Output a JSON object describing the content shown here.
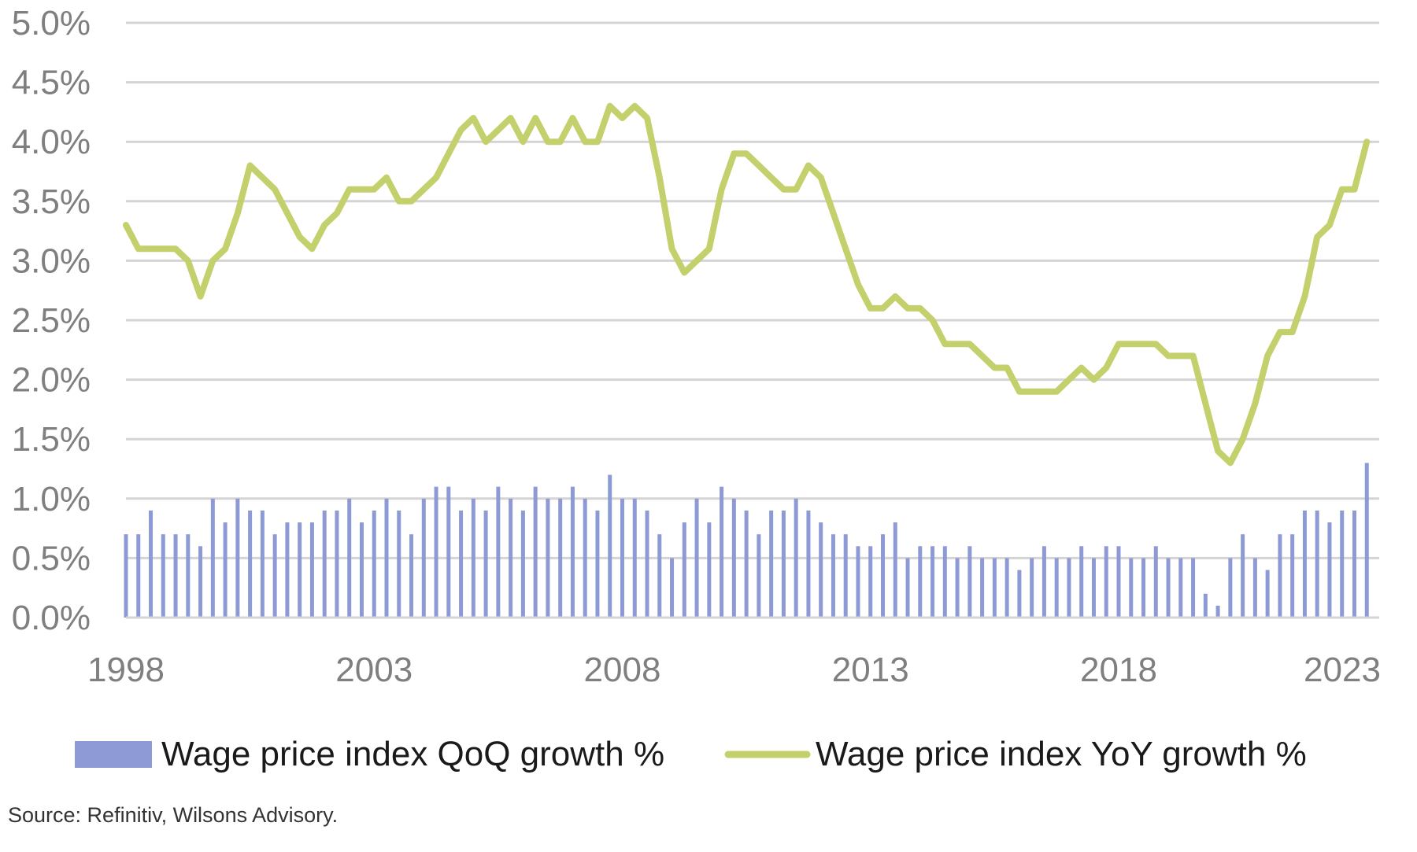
{
  "chart_data": {
    "type": "bar",
    "x_tick_labels": [
      "1998",
      "2003",
      "2008",
      "2013",
      "2018",
      "2023"
    ],
    "y_tick_labels": [
      "0.0%",
      "0.5%",
      "1.0%",
      "1.5%",
      "2.0%",
      "2.5%",
      "3.0%",
      "3.5%",
      "4.0%",
      "4.5%",
      "5.0%"
    ],
    "ylim": [
      0,
      5
    ],
    "xlim": [
      1998.0,
      2023.25
    ],
    "grid": true,
    "legend_position": "bottom",
    "series": [
      {
        "name": "Wage price index QoQ growth %",
        "type": "bar",
        "color": "#8d9ad6",
        "x_start": 1998.0,
        "x_step": 0.25,
        "values": [
          0.7,
          0.7,
          0.9,
          0.7,
          0.7,
          0.7,
          0.6,
          1.0,
          0.8,
          1.0,
          0.9,
          0.9,
          0.7,
          0.8,
          0.8,
          0.8,
          0.9,
          0.9,
          1.0,
          0.8,
          0.9,
          1.0,
          0.9,
          0.7,
          1.0,
          1.1,
          1.1,
          0.9,
          1.0,
          0.9,
          1.1,
          1.0,
          0.9,
          1.1,
          1.0,
          1.0,
          1.1,
          1.0,
          0.9,
          1.2,
          1.0,
          1.0,
          0.9,
          0.7,
          0.5,
          0.8,
          1.0,
          0.8,
          1.1,
          1.0,
          0.9,
          0.7,
          0.9,
          0.9,
          1.0,
          0.9,
          0.8,
          0.7,
          0.7,
          0.6,
          0.6,
          0.7,
          0.8,
          0.5,
          0.6,
          0.6,
          0.6,
          0.5,
          0.6,
          0.5,
          0.5,
          0.5,
          0.4,
          0.5,
          0.6,
          0.5,
          0.5,
          0.6,
          0.5,
          0.6,
          0.6,
          0.5,
          0.5,
          0.6,
          0.5,
          0.5,
          0.5,
          0.2,
          0.1,
          0.5,
          0.7,
          0.5,
          0.4,
          0.7,
          0.7,
          0.9,
          0.9,
          0.8,
          0.9,
          0.9,
          1.3
        ]
      },
      {
        "name": "Wage price index YoY growth %",
        "type": "line",
        "color": "#c3d06b",
        "x_start": 1998.0,
        "x_step": 0.25,
        "values": [
          3.3,
          3.1,
          3.1,
          3.1,
          3.1,
          3.0,
          2.7,
          3.0,
          3.1,
          3.4,
          3.8,
          3.7,
          3.6,
          3.4,
          3.2,
          3.1,
          3.3,
          3.4,
          3.6,
          3.6,
          3.6,
          3.7,
          3.5,
          3.5,
          3.6,
          3.7,
          3.9,
          4.1,
          4.2,
          4.0,
          4.1,
          4.2,
          4.0,
          4.2,
          4.0,
          4.0,
          4.2,
          4.0,
          4.0,
          4.3,
          4.2,
          4.3,
          4.2,
          3.7,
          3.1,
          2.9,
          3.0,
          3.1,
          3.6,
          3.9,
          3.9,
          3.8,
          3.7,
          3.6,
          3.6,
          3.8,
          3.7,
          3.4,
          3.1,
          2.8,
          2.6,
          2.6,
          2.7,
          2.6,
          2.6,
          2.5,
          2.3,
          2.3,
          2.3,
          2.2,
          2.1,
          2.1,
          1.9,
          1.9,
          1.9,
          1.9,
          2.0,
          2.1,
          2.0,
          2.1,
          2.3,
          2.3,
          2.3,
          2.3,
          2.2,
          2.2,
          2.2,
          1.8,
          1.4,
          1.3,
          1.5,
          1.8,
          2.2,
          2.4,
          2.4,
          2.7,
          3.2,
          3.3,
          3.6,
          3.6,
          4.0
        ]
      }
    ],
    "source": "Source: Refinitiv, Wilsons Advisory."
  }
}
